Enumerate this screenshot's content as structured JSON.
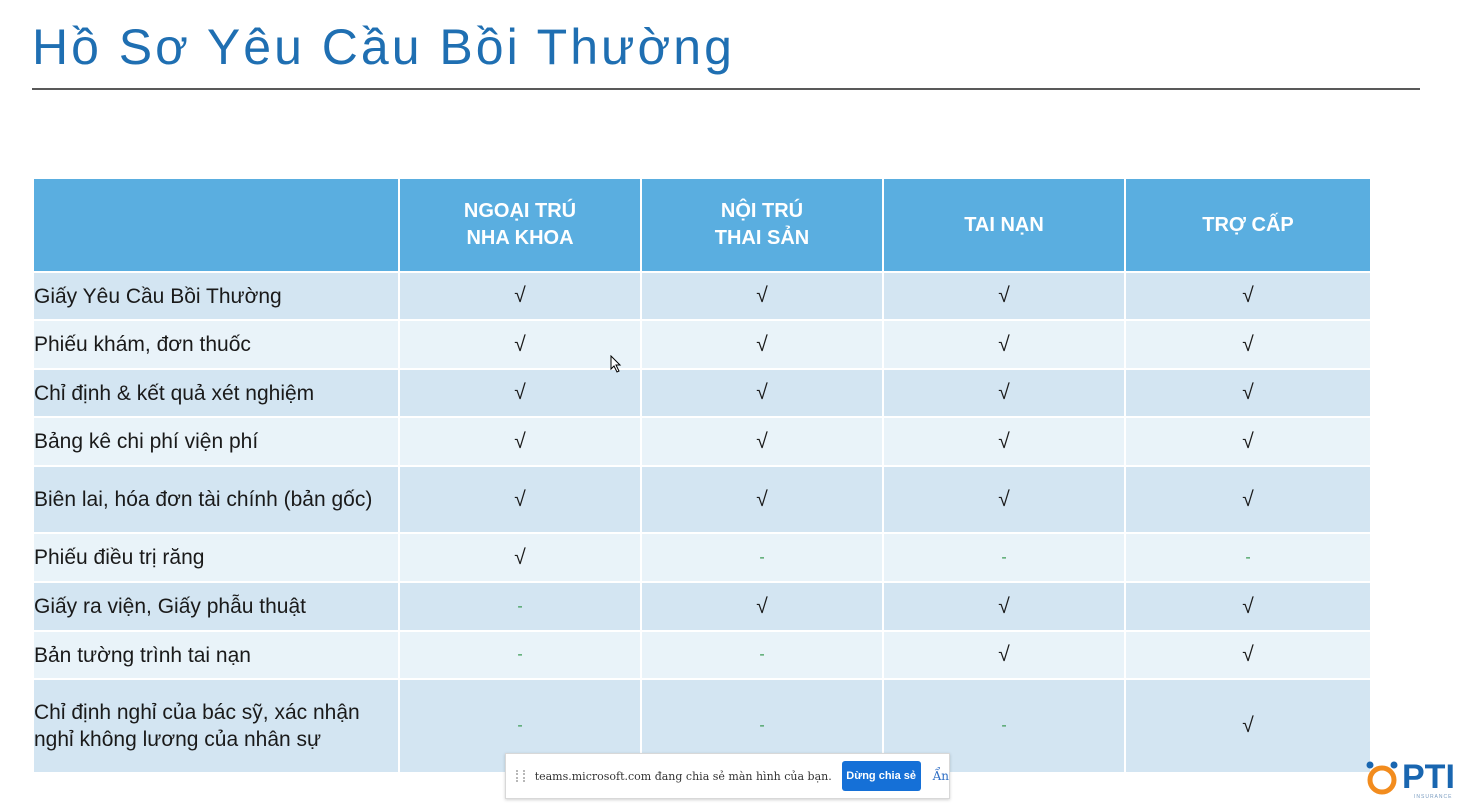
{
  "title": "Hồ Sơ Yêu Cầu Bồi Thường",
  "table": {
    "columns": [
      {
        "line1": "NGOẠI TRÚ",
        "line2": "NHA KHOA"
      },
      {
        "line1": "NỘI TRÚ",
        "line2": "THAI SẢN"
      },
      {
        "line1": "TAI NẠN",
        "line2": ""
      },
      {
        "line1": "TRỢ CẤP",
        "line2": ""
      }
    ],
    "rows": [
      {
        "label": "Giấy Yêu Cầu Bồi Thường",
        "cells": [
          "√",
          "√",
          "√",
          "√"
        ]
      },
      {
        "label": "Phiếu khám, đơn thuốc",
        "cells": [
          "√",
          "√",
          "√",
          "√"
        ]
      },
      {
        "label": "Chỉ định & kết quả xét nghiệm",
        "cells": [
          "√",
          "√",
          "√",
          "√"
        ]
      },
      {
        "label": "Bảng kê chi phí viện phí",
        "cells": [
          "√",
          "√",
          "√",
          "√"
        ]
      },
      {
        "label": "Biên lai, hóa đơn tài chính (bản gốc)",
        "cells": [
          "√",
          "√",
          "√",
          "√"
        ]
      },
      {
        "label": "Phiếu điều trị răng",
        "cells": [
          "√",
          "-",
          "-",
          "-"
        ]
      },
      {
        "label": "Giấy ra viện, Giấy phẫu thuật",
        "cells": [
          "-",
          "√",
          "√",
          "√"
        ]
      },
      {
        "label": "Bản tường trình tai nạn",
        "cells": [
          "-",
          "-",
          "√",
          "√"
        ]
      },
      {
        "label": "Chỉ định nghỉ của bác sỹ, xác nhận nghỉ không lương của nhân sự",
        "cells": [
          "-",
          "-",
          "-",
          "√"
        ]
      }
    ]
  },
  "share_bar": {
    "message": "teams.microsoft.com đang chia sẻ màn hình của bạn.",
    "stop_label": "Dừng chia sẻ",
    "hide_label": "Ẩn"
  },
  "logo": {
    "text": "PTI",
    "sub": "INSURANCE"
  },
  "colors": {
    "title": "#1f6fb2",
    "header_bg": "#5aaee0",
    "row_dark": "#d3e5f2",
    "row_light": "#e9f3f9",
    "check": "#2bae4a",
    "stop_button": "#1570d7"
  }
}
